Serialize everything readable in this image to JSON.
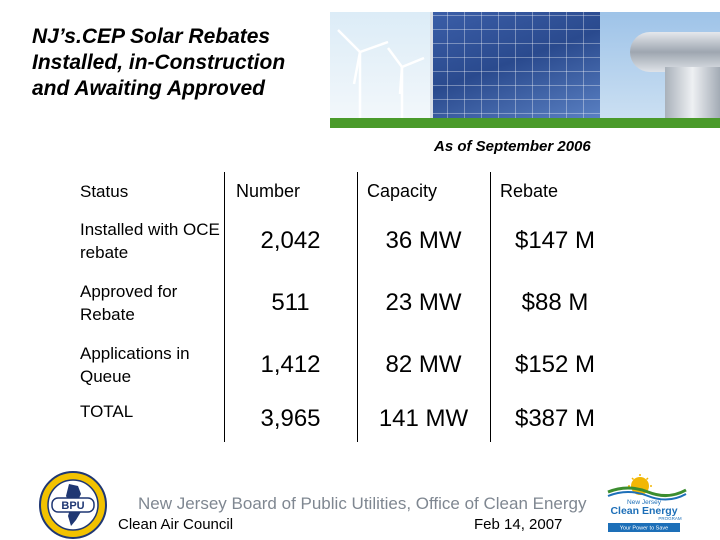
{
  "slide": {
    "title": "NJ’s.CEP Solar Rebates Installed, in-Construction and Awaiting Approved",
    "as_of": "As of September 2006"
  },
  "table": {
    "headers": [
      "Status",
      "Number",
      "Capacity",
      "Rebate"
    ],
    "rows": [
      {
        "status": "Installed with OCE rebate",
        "number": "2,042",
        "capacity": "36 MW",
        "rebate": "$147 M"
      },
      {
        "status": "Approved for Rebate",
        "number": "511",
        "capacity": "23 MW",
        "rebate": "$88 M"
      },
      {
        "status": "Applications in Queue",
        "number": "1,412",
        "capacity": "82 MW",
        "rebate": "$152 M"
      },
      {
        "status": "TOTAL",
        "number": "3,965",
        "capacity": "141 MW",
        "rebate": "$387 M"
      }
    ]
  },
  "footer": {
    "org": "New Jersey Board of Public Utilities, Office of Clean Energy",
    "left": "Clean Air Council",
    "right": "Feb 14, 2007"
  },
  "logos": {
    "bpu": "BPU",
    "cep_state": "New Jersey",
    "cep_name": "Clean Energy",
    "cep_program": "PROGRAM",
    "cep_tagline": "Your Power to Save"
  },
  "colors": {
    "footer_gray": "#7f8791",
    "cep_green": "#3c8d2f",
    "cep_blue": "#1d6fb8",
    "seal_navy": "#1f3773",
    "seal_yellow": "#f2c200"
  }
}
